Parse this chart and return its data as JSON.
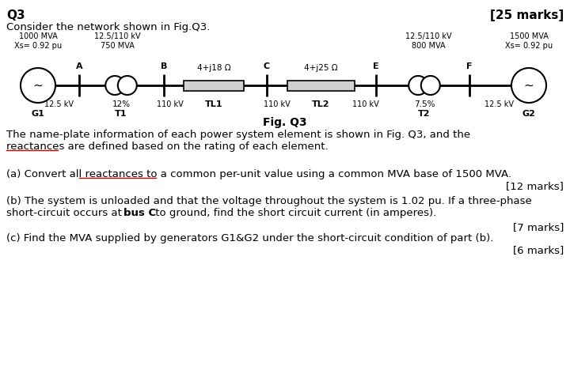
{
  "title_left": "Q3",
  "title_right": "[25 marks]",
  "intro_text": "Consider the network shown in Fig.Q3.",
  "fig_caption": "Fig. Q3",
  "desc_line1": "The name-plate information of each power system element is shown in Fig. Q3, and the",
  "desc_line2": "reactances are defined based on the rating of each element.",
  "q_a_text": "(a) Convert all reactances to a common per-unit value using a common MVA base of 1500 MVA.",
  "q_a_marks": "[12 marks]",
  "q_b_line1": "(b) The system is unloaded and that the voltage throughout the system is 1.02 pu. If a three-phase",
  "q_b_line2_pre": "short-circuit occurs at ",
  "q_b_line2_bold": "bus C",
  "q_b_line2_post": " to ground, find the short circuit current (in amperes).",
  "q_b_marks": "[7 marks]",
  "q_c_text": "(c) Find the MVA supplied by generators G1&G2 under the short-circuit condition of part (b).",
  "q_c_marks": "[6 marks]",
  "background": "#ffffff",
  "text_color": "#000000",
  "underline_color": "#cc0000",
  "g1_label1": "1000 MVA",
  "g1_label2": "Xs= 0.92 pu",
  "g1_bot": "G1",
  "g1_kv": "12.5 kV",
  "t1_label1": "12.5/110 kV",
  "t1_label2": "750 MVA",
  "t1_pct": "12%",
  "t1_bot": "T1",
  "t1_kv": "110 kV",
  "tl1_label": "4+j18 Ω",
  "tl1_bot": "TL1",
  "tl1_kv_left": "110 kV",
  "tl2_label": "4+j25 Ω",
  "tl2_bot": "TL2",
  "tl2_kv_left": "110 kV",
  "tl2_kv_right": "110 kV",
  "t2_label1": "12.5/110 kV",
  "t2_label2": "800 MVA",
  "t2_pct": "7.5%",
  "t2_bot": "T2",
  "t2_kv": "12.5 kV",
  "g2_label1": "1500 MVA",
  "g2_label2": "Xs= 0.92 pu",
  "g2_bot": "G2",
  "node_a": "A",
  "node_b": "B",
  "node_c": "C",
  "node_e": "E",
  "node_f": "F"
}
